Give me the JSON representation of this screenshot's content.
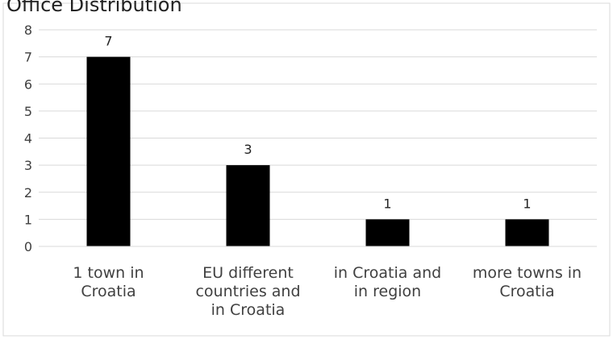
{
  "chart_data": {
    "type": "bar",
    "title": "Office Distribution",
    "categories": [
      [
        "1 town in",
        "Croatia"
      ],
      [
        "EU different",
        "countries and",
        "in Croatia"
      ],
      [
        "in Croatia and",
        "in region"
      ],
      [
        "more towns in",
        "Croatia"
      ]
    ],
    "values": [
      7,
      3,
      1,
      1
    ],
    "data_labels": [
      "7",
      "3",
      "1",
      "1"
    ],
    "yticks": [
      "0",
      "1",
      "2",
      "3",
      "4",
      "5",
      "6",
      "7",
      "8"
    ],
    "xlabel": "",
    "ylabel": "",
    "ylim": [
      0,
      8
    ],
    "grid": true,
    "legend": "none",
    "bar_color": "#000000",
    "grid_color": "#d9d9d9"
  }
}
